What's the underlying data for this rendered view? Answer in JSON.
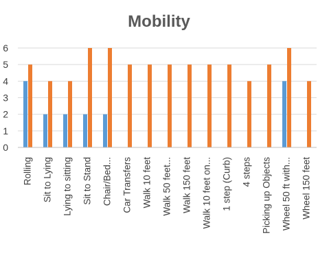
{
  "chart_data": {
    "type": "bar",
    "title": "Mobility",
    "xlabel": "",
    "ylabel": "",
    "ylim": [
      0,
      6
    ],
    "yticks": [
      0,
      1,
      2,
      3,
      4,
      5,
      6
    ],
    "grid": true,
    "legend": "none",
    "categories": [
      "Rolling",
      "Sit to Lying",
      "Lying to sitting",
      "Sit to Stand",
      "Chair/Bed...",
      "Car Transfers",
      "Walk 10 feet",
      "Walk 50 feet...",
      "Walk 150 feet",
      "Walk 10 feet on...",
      "1 step (Curb)",
      "4 steps",
      "Picking up Objects",
      "Wheel 50 ft with...",
      "Wheel 150 feet"
    ],
    "series": [
      {
        "color": "#5B9BD5",
        "values": [
          4,
          2,
          2,
          2,
          2,
          null,
          null,
          null,
          null,
          null,
          null,
          null,
          null,
          4,
          null
        ]
      },
      {
        "color": "#ED7D31",
        "values": [
          5,
          4,
          4,
          6,
          6,
          5,
          5,
          5,
          5,
          5,
          5,
          4,
          5,
          6,
          4
        ]
      }
    ],
    "gridline_color": "#D9D9D9",
    "axis_color": "#BFBFBF"
  }
}
